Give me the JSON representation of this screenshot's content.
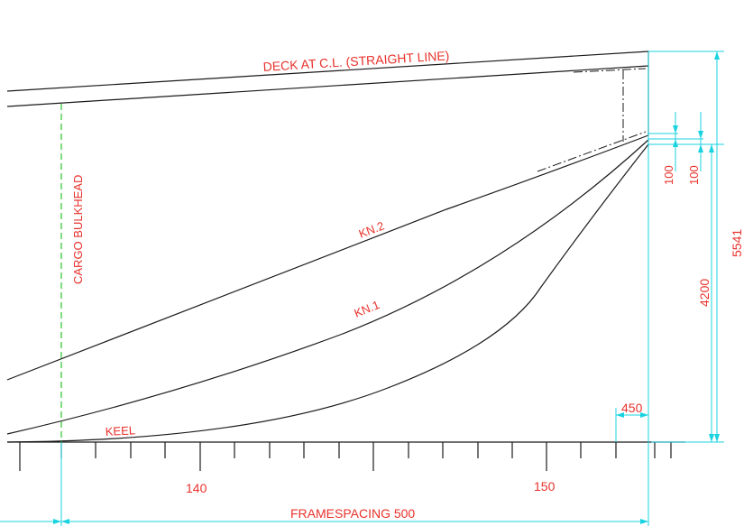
{
  "labels": {
    "deck": "DECK AT C.L. (STRAIGHT LINE)",
    "bulkhead": "CARGO BULKHEAD",
    "kn2": "KN.2",
    "kn1": "KN.1",
    "keel": "KEEL",
    "framespacing": "FRAMESPACING 500"
  },
  "dimensions": {
    "d100a": "100",
    "d100b": "100",
    "d4200": "4200",
    "d5541": "5541",
    "d450": "450"
  },
  "frames": {
    "f140": "140",
    "f150": "150"
  },
  "colors": {
    "text": "#e8322c",
    "outline": "#1a1a1a",
    "dimension": "#19d3e0",
    "bulkhead": "#2bc42b"
  }
}
